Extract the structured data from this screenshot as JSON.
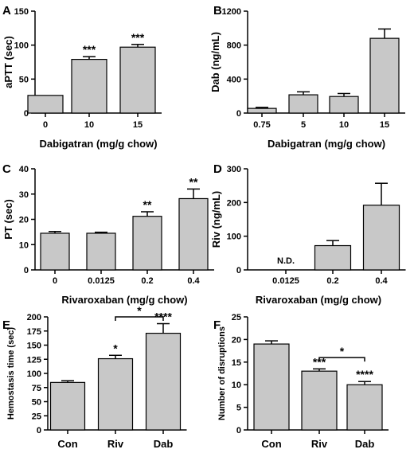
{
  "colors": {
    "bar_fill": "#c8c8c8",
    "stroke": "#000000"
  },
  "chart_data": [
    {
      "panel": "A",
      "type": "bar",
      "ylabel": "aPTT (sec)",
      "xlabel": "Dabigatran (mg/g chow)",
      "categories": [
        "0",
        "10",
        "15"
      ],
      "values": [
        26,
        79,
        97
      ],
      "errors": [
        0,
        4,
        4
      ],
      "ylim": [
        0,
        150
      ],
      "yticks": [
        "0",
        "50",
        "100",
        "150"
      ],
      "ytick_values": [
        0,
        50,
        100,
        150
      ],
      "annotations": [
        "",
        "***",
        "***"
      ]
    },
    {
      "panel": "B",
      "type": "bar",
      "ylabel": "Dab (ng/mL)",
      "xlabel": "Dabigatran (mg/g chow)",
      "categories": [
        "0.75",
        "5",
        "10",
        "15"
      ],
      "values": [
        55,
        215,
        195,
        880
      ],
      "errors": [
        12,
        35,
        35,
        110
      ],
      "ylim": [
        0,
        1200
      ],
      "yticks": [
        "0",
        "400",
        "800",
        "1200"
      ],
      "ytick_values": [
        0,
        400,
        800,
        1200
      ],
      "annotations": [
        "",
        "",
        "",
        ""
      ]
    },
    {
      "panel": "C",
      "type": "bar",
      "ylabel": "PT (sec)",
      "xlabel": "Rivaroxaban (mg/g chow)",
      "categories": [
        "0",
        "0.0125",
        "0.2",
        "0.4"
      ],
      "values": [
        14.5,
        14.5,
        21.2,
        28.2
      ],
      "errors": [
        0.7,
        0.4,
        1.8,
        3.8
      ],
      "ylim": [
        0,
        40
      ],
      "yticks": [
        "0",
        "10",
        "20",
        "30",
        "40"
      ],
      "ytick_values": [
        0,
        10,
        20,
        30,
        40
      ],
      "annotations": [
        "",
        "",
        "**",
        "**"
      ]
    },
    {
      "panel": "D",
      "type": "bar",
      "ylabel": "Riv (ng/mL)",
      "xlabel": "Rivaroxaban (mg/g chow)",
      "categories": [
        "0.0125",
        "0.2",
        "0.4"
      ],
      "values": [
        null,
        72,
        192
      ],
      "errors": [
        0,
        15,
        65
      ],
      "ylim": [
        0,
        300
      ],
      "yticks": [
        "0",
        "100",
        "200",
        "300"
      ],
      "ytick_values": [
        0,
        100,
        200,
        300
      ],
      "annotations": [
        "",
        "",
        ""
      ],
      "value_notes": [
        "N.D.",
        "",
        ""
      ]
    },
    {
      "panel": "E",
      "type": "bar",
      "ylabel": "Hemostasis time (sec)",
      "xlabel": "",
      "categories": [
        "Con",
        "Riv",
        "Dab"
      ],
      "values": [
        84,
        126,
        171
      ],
      "errors": [
        3,
        6,
        17
      ],
      "ylim": [
        0,
        200
      ],
      "yticks": [
        "0",
        "25",
        "50",
        "75",
        "100",
        "125",
        "150",
        "175",
        "200"
      ],
      "ytick_values": [
        0,
        25,
        50,
        75,
        100,
        125,
        150,
        175,
        200
      ],
      "annotations": [
        "",
        "*",
        "****"
      ],
      "bracket": {
        "from": 1,
        "to": 2,
        "value": 200,
        "label": "*"
      }
    },
    {
      "panel": "F",
      "type": "bar",
      "ylabel": "Number of disruptions",
      "xlabel": "",
      "categories": [
        "Con",
        "Riv",
        "Dab"
      ],
      "values": [
        19,
        13,
        10
      ],
      "errors": [
        0.7,
        0.5,
        0.7
      ],
      "ylim": [
        0,
        25
      ],
      "yticks": [
        "0",
        "5",
        "10",
        "15",
        "20",
        "25"
      ],
      "ytick_values": [
        0,
        5,
        10,
        15,
        20,
        25
      ],
      "annotations": [
        "",
        "***",
        "****"
      ],
      "bracket": {
        "from": 1,
        "to": 2,
        "value": 16,
        "label": "*"
      }
    }
  ]
}
